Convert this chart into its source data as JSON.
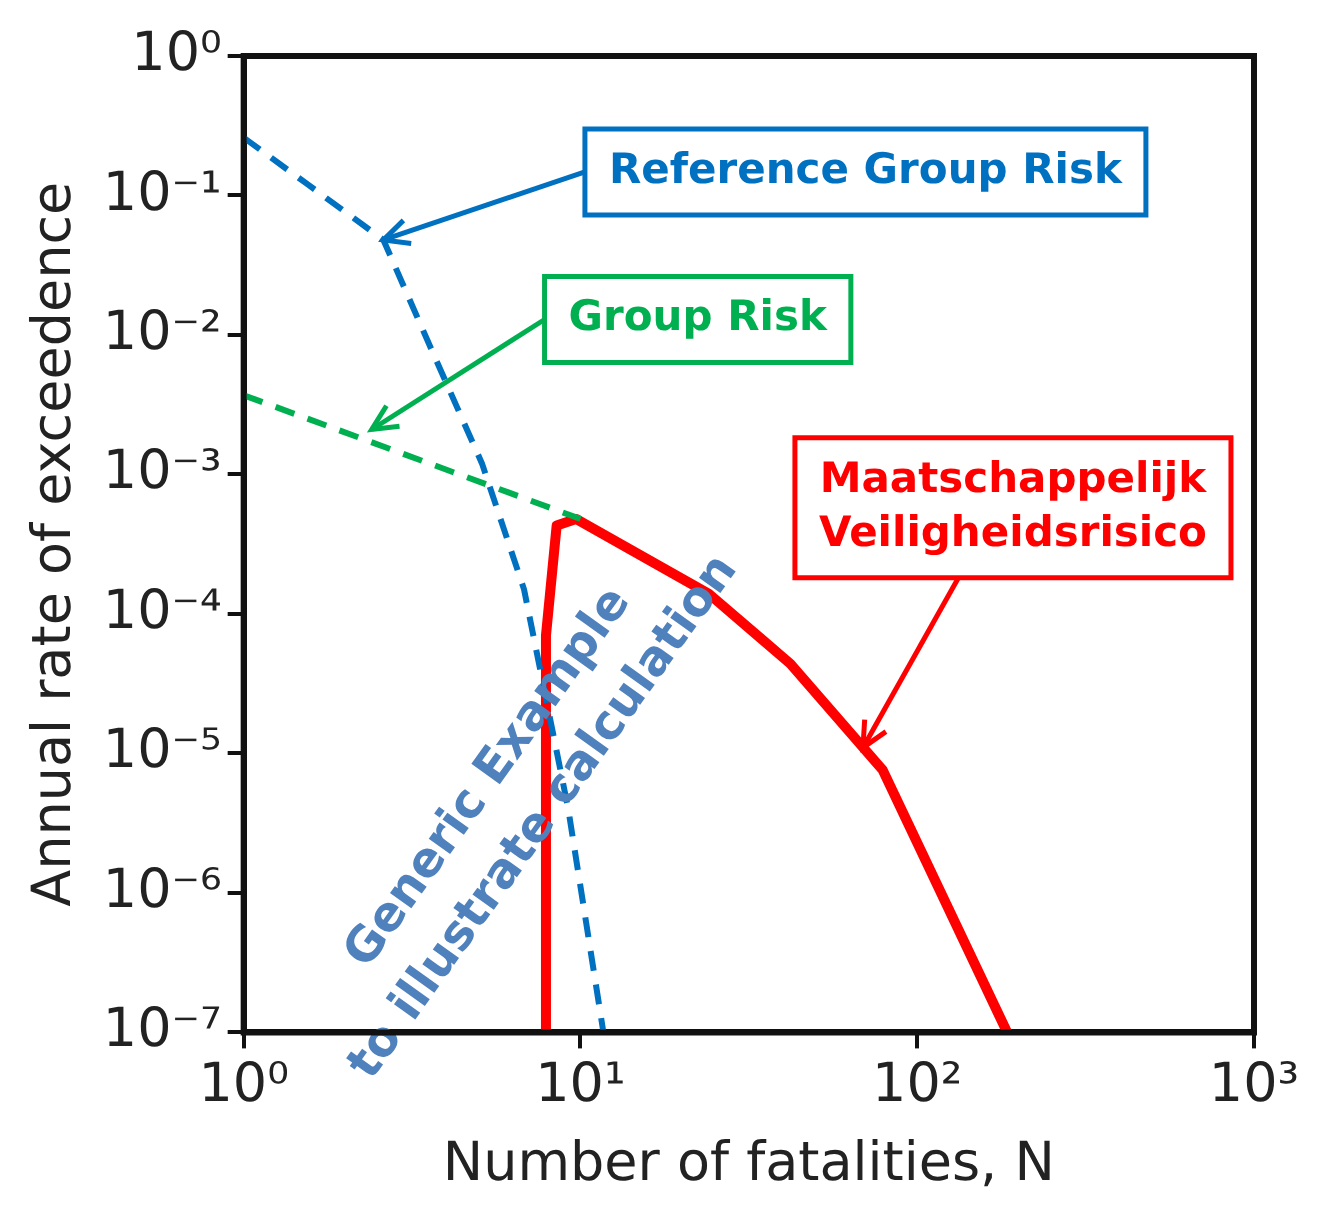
{
  "chart_data": {
    "type": "line",
    "xlabel": "Number of fatalities, N",
    "ylabel": "Annual rate of exceedence",
    "log": "xy",
    "xlim": [
      1,
      1000
    ],
    "ylim": [
      1e-07,
      1
    ],
    "xticks": [
      {
        "value": 1,
        "label": "10⁰"
      },
      {
        "value": 10,
        "label": "10¹"
      },
      {
        "value": 100,
        "label": "10²"
      },
      {
        "value": 1000,
        "label": "10³"
      }
    ],
    "yticks": [
      {
        "value": 1e-07,
        "label": "10⁻⁷"
      },
      {
        "value": 1e-06,
        "label": "10⁻⁶"
      },
      {
        "value": 1e-05,
        "label": "10⁻⁵"
      },
      {
        "value": 0.0001,
        "label": "10⁻⁴"
      },
      {
        "value": 0.001,
        "label": "10⁻³"
      },
      {
        "value": 0.01,
        "label": "10⁻²"
      },
      {
        "value": 0.1,
        "label": "10⁻¹"
      },
      {
        "value": 1,
        "label": "10⁰"
      }
    ],
    "grid": false,
    "legend": false,
    "marker": "none",
    "series": [
      {
        "color": "#0070c0",
        "line_style": "dashed",
        "x": [
          1,
          1.55,
          2.6,
          3.6,
          5.1,
          6.8,
          9.2,
          11.7
        ],
        "values": [
          0.26,
          0.12,
          0.048,
          0.008,
          0.0012,
          0.00015,
          4e-06,
          1e-07
        ]
      },
      {
        "color": "#00b050",
        "line_style": "dashed",
        "x": [
          1,
          10
        ],
        "values": [
          0.0037,
          0.00048
        ]
      },
      {
        "color": "#ff0000",
        "line_style": "solid",
        "x": [
          7.9,
          7.9,
          8.5,
          9.7,
          24,
          42,
          79,
          185
        ],
        "values": [
          1e-07,
          7e-05,
          0.00043,
          0.00048,
          0.00014,
          4.4e-05,
          7.6e-06,
          1e-07
        ]
      }
    ],
    "annotations": [
      {
        "text": "Reference Group Risk",
        "x": 2.6,
        "y": 0.048
      },
      {
        "text": "Group Risk",
        "x": 2.4,
        "y": 0.0021
      },
      {
        "text": "Maatschappelijk Veiligheidsrisico",
        "x": 69,
        "y": 1.1e-05
      },
      "Generic Example",
      "to illustrate calculation"
    ]
  }
}
